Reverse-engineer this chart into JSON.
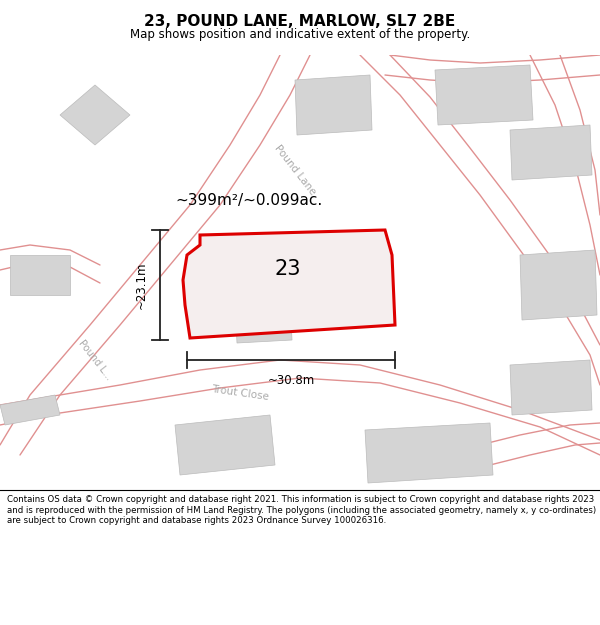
{
  "title": "23, POUND LANE, MARLOW, SL7 2BE",
  "subtitle": "Map shows position and indicative extent of the property.",
  "footer": "Contains OS data © Crown copyright and database right 2021. This information is subject to Crown copyright and database rights 2023 and is reproduced with the permission of HM Land Registry. The polygons (including the associated geometry, namely x, y co-ordinates) are subject to Crown copyright and database rights 2023 Ordnance Survey 100026316.",
  "area_label": "~399m²/~0.099ac.",
  "plot_number": "23",
  "dim_width": "~30.8m",
  "dim_height": "~23.1m",
  "road_label_pound_top": "Pound Lane",
  "road_label_pound_left": "Pound L...",
  "road_label_trout": "Trout Close",
  "red_color": "#dd0000",
  "building_color": "#d4d4d4",
  "building_edge": "#bbbbbb",
  "road_line_color": "#e09090",
  "map_bg": "#eeecec",
  "title_bg": "#ffffff",
  "footer_bg": "#ffffff",
  "dim_color": "#222222"
}
